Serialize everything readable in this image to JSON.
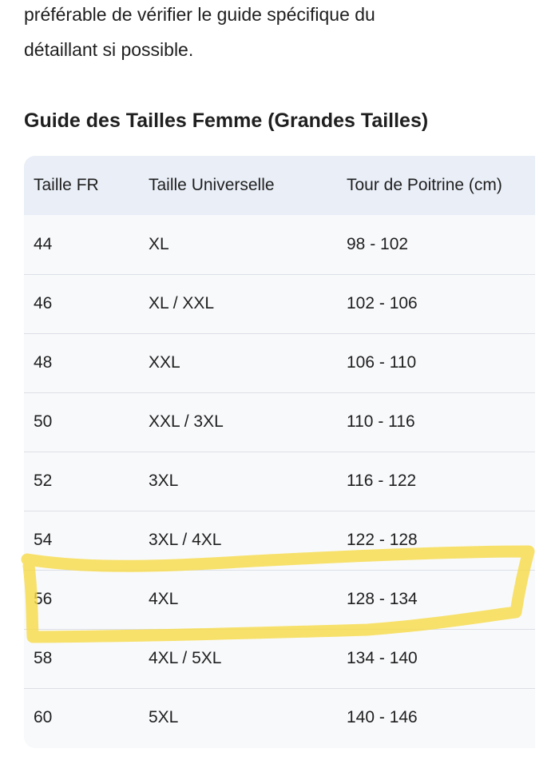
{
  "intro": {
    "line1": "préférable de vérifier le guide spécifique du",
    "line2": "détaillant si possible."
  },
  "heading": "Guide des Tailles Femme (Grandes Tailles)",
  "table": {
    "headers": [
      "Taille FR",
      "Taille Universelle",
      "Tour de Poitrine (cm)"
    ],
    "rows": [
      [
        "44",
        "XL",
        "98 - 102"
      ],
      [
        "46",
        "XL / XXL",
        "102 - 106"
      ],
      [
        "48",
        "XXL",
        "106 - 110"
      ],
      [
        "50",
        "XXL / 3XL",
        "110 - 116"
      ],
      [
        "52",
        "3XL",
        "116 - 122"
      ],
      [
        "54",
        "3XL / 4XL",
        "122 - 128"
      ],
      [
        "56",
        "4XL",
        "128 - 134"
      ],
      [
        "58",
        "4XL / 5XL",
        "134 - 140"
      ],
      [
        "60",
        "5XL",
        "140 - 146"
      ]
    ],
    "highlighted_row": "56"
  },
  "colors": {
    "text": "#1f1f1f",
    "header_bg": "#e9eef7",
    "row_bg": "#f8f9fb",
    "divider": "#dcdfe5",
    "highlighter": "#f7dc4a"
  }
}
